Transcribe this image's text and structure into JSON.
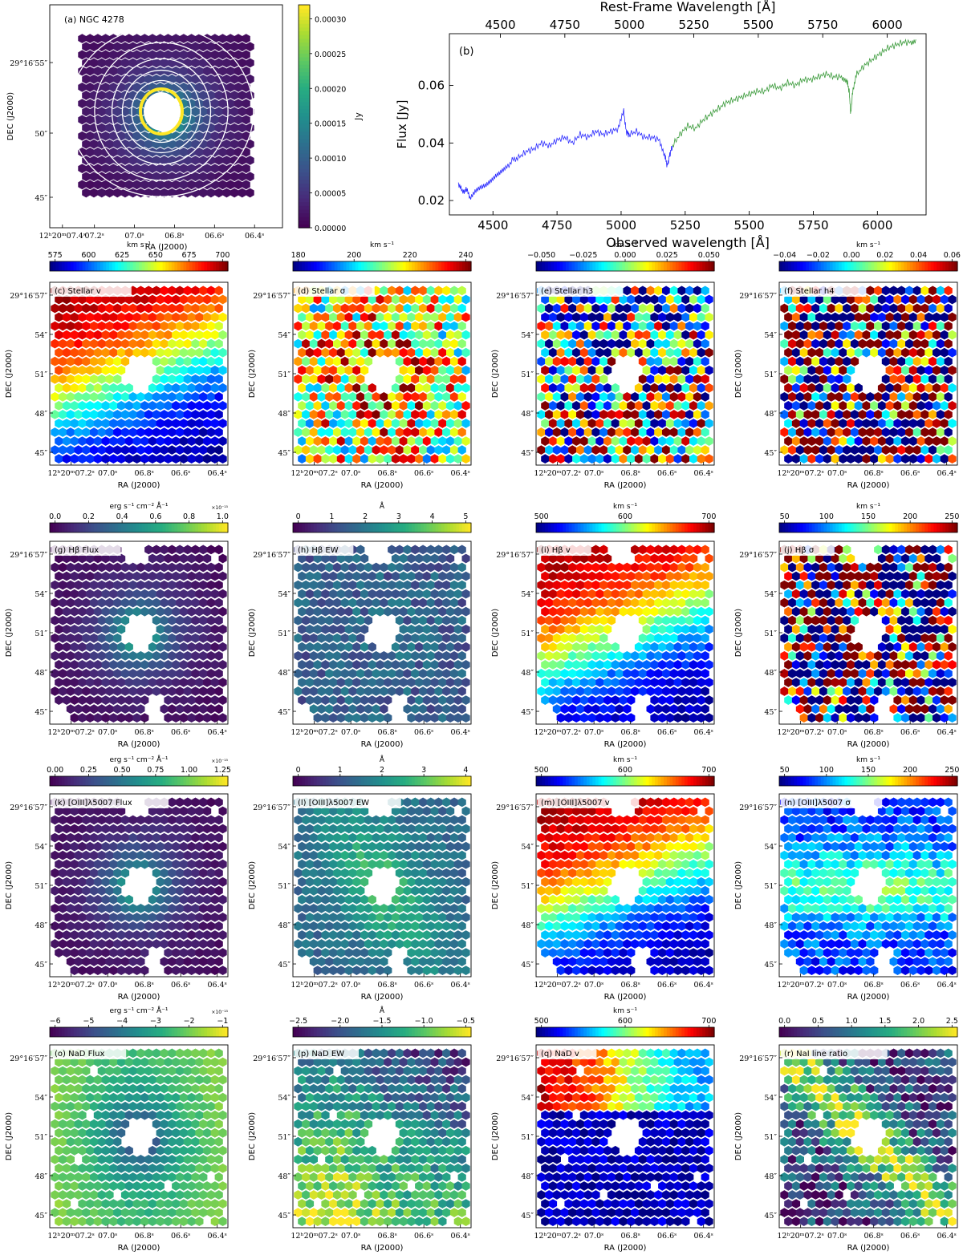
{
  "chart_data": [
    {
      "id": "a",
      "type": "heatmap",
      "title": "(a) NGC 4278",
      "xlabel": "RA (J2000)",
      "ylabel": "DEC (J2000)",
      "x_ticks": [
        "12h20m07.4s",
        "07.2s",
        "07.0s",
        "06.8s",
        "06.6s",
        "06.4s"
      ],
      "y_ticks": [
        "45″",
        "50″",
        "29°16′55″"
      ],
      "colormap": "viridis",
      "colorbar": {
        "label": "Jy",
        "range": [
          0.0,
          0.00032
        ],
        "ticks": [
          "0.00000",
          "0.00005",
          "0.00010",
          "0.00015",
          "0.00020",
          "0.00025",
          "0.00030"
        ]
      },
      "contours": "white",
      "field": "radial"
    },
    {
      "id": "b",
      "type": "line",
      "label": "(b)",
      "xlabel": "Observed wavelength [Å]",
      "x2label": "Rest-Frame Wavelength [Å]",
      "ylabel": "Flux [Jy]",
      "xlim": [
        4330,
        6190
      ],
      "ylim": [
        0.015,
        0.078
      ],
      "x_ticks": [
        "4500",
        "4750",
        "5000",
        "5250",
        "5500",
        "5750",
        "6000"
      ],
      "x2_ticks": [
        "4500",
        "4750",
        "5000",
        "5250",
        "5500",
        "5750",
        "6000"
      ],
      "y_ticks": [
        "0.02",
        "0.04",
        "0.06"
      ],
      "series": [
        {
          "name": "blue segment",
          "color": "#2b2bff",
          "x": [
            4365,
            4380,
            4395,
            4410,
            4430,
            4450,
            4470,
            4490,
            4510,
            4530,
            4550,
            4575,
            4600,
            4630,
            4660,
            4690,
            4720,
            4750,
            4780,
            4810,
            4840,
            4870,
            4900,
            4930,
            4960,
            4990,
            5010,
            5020,
            5030,
            5060,
            5090,
            5120,
            5150,
            5170,
            5180,
            5190,
            5200
          ],
          "y": [
            0.026,
            0.023,
            0.024,
            0.021,
            0.023,
            0.024,
            0.025,
            0.027,
            0.029,
            0.03,
            0.031,
            0.034,
            0.035,
            0.037,
            0.038,
            0.04,
            0.039,
            0.041,
            0.042,
            0.04,
            0.043,
            0.042,
            0.044,
            0.043,
            0.044,
            0.045,
            0.051,
            0.044,
            0.043,
            0.044,
            0.042,
            0.042,
            0.041,
            0.036,
            0.032,
            0.036,
            0.039
          ]
        },
        {
          "name": "green segment",
          "color": "#3a9a3a",
          "x": [
            5200,
            5230,
            5260,
            5290,
            5320,
            5350,
            5380,
            5410,
            5440,
            5470,
            5500,
            5530,
            5560,
            5590,
            5620,
            5650,
            5680,
            5710,
            5740,
            5770,
            5800,
            5830,
            5860,
            5880,
            5890,
            5896,
            5905,
            5920,
            5950,
            5980,
            6010,
            6040,
            6070,
            6100,
            6130,
            6150
          ],
          "y": [
            0.039,
            0.043,
            0.046,
            0.045,
            0.048,
            0.05,
            0.052,
            0.054,
            0.055,
            0.056,
            0.057,
            0.058,
            0.058,
            0.06,
            0.059,
            0.061,
            0.06,
            0.062,
            0.062,
            0.063,
            0.064,
            0.063,
            0.063,
            0.062,
            0.058,
            0.05,
            0.059,
            0.064,
            0.067,
            0.069,
            0.071,
            0.073,
            0.074,
            0.075,
            0.075,
            0.076
          ]
        }
      ]
    },
    {
      "id": "c",
      "type": "heatmap",
      "title": "(c) Stellar v",
      "colormap": "jet",
      "colorbar": {
        "label": "km s⁻¹",
        "ticks": [
          "575",
          "600",
          "625",
          "650",
          "675",
          "700"
        ]
      },
      "field": "velocity",
      "mask": "rect",
      "noise": 0.05
    },
    {
      "id": "d",
      "type": "heatmap",
      "title": "(d) Stellar σ",
      "colormap": "jet",
      "colorbar": {
        "label": "km s⁻¹",
        "ticks": [
          "180",
          "200",
          "220",
          "240"
        ]
      },
      "field": "sigma",
      "mask": "rect",
      "noise": 0.35
    },
    {
      "id": "e",
      "type": "heatmap",
      "title": "(e) Stellar h3",
      "colormap": "jet",
      "colorbar": {
        "label": "km s⁻¹",
        "ticks": [
          "−0.050",
          "−0.025",
          "0.000",
          "0.025",
          "0.050"
        ]
      },
      "field": "h3",
      "mask": "rect",
      "noise": 0.6
    },
    {
      "id": "f",
      "type": "heatmap",
      "title": "(f) Stellar h4",
      "colormap": "jet",
      "colorbar": {
        "label": "km s⁻¹",
        "ticks": [
          "−0.04",
          "−0.02",
          "0.00",
          "0.02",
          "0.04",
          "0.06"
        ]
      },
      "field": "noise",
      "mask": "rect",
      "noise": 1.0
    },
    {
      "id": "g",
      "type": "heatmap",
      "title": "(g) Hβ Flux",
      "colormap": "viridis",
      "colorbar": {
        "label": "erg s⁻¹ cm⁻² Å⁻¹",
        "ticks": [
          "0.0",
          "0.2",
          "0.4",
          "0.6",
          "0.8",
          "1.0"
        ],
        "offset": "×10⁻¹⁵"
      },
      "field": "radial",
      "mask": "notch",
      "noise": 0.03
    },
    {
      "id": "h",
      "type": "heatmap",
      "title": "(h) Hβ EW",
      "colormap": "viridis",
      "colorbar": {
        "label": "Å",
        "ticks": [
          "0",
          "1",
          "2",
          "3",
          "4",
          "5"
        ]
      },
      "field": "flat",
      "mask": "notch",
      "noise": 0.12
    },
    {
      "id": "i",
      "type": "heatmap",
      "title": "(i) Hβ v",
      "colormap": "jet",
      "colorbar": {
        "label": "km s⁻¹",
        "ticks": [
          "500",
          "600",
          "700"
        ]
      },
      "field": "velocity",
      "mask": "notch",
      "noise": 0.05
    },
    {
      "id": "j",
      "type": "heatmap",
      "title": "(j) Hβ σ",
      "colormap": "jet",
      "colorbar": {
        "label": "km s⁻¹",
        "ticks": [
          "50",
          "100",
          "150",
          "200",
          "250"
        ]
      },
      "field": "noise",
      "mask": "notch",
      "noise": 1.0
    },
    {
      "id": "k",
      "type": "heatmap",
      "title": "(k) [OIII]λ5007 Flux",
      "colormap": "viridis",
      "colorbar": {
        "label": "erg s⁻¹ cm⁻² Å⁻¹",
        "ticks": [
          "0.00",
          "0.25",
          "0.50",
          "0.75",
          "1.00",
          "1.25"
        ],
        "offset": "×10⁻¹⁵"
      },
      "field": "radial",
      "mask": "notch",
      "noise": 0.03
    },
    {
      "id": "l",
      "type": "heatmap",
      "title": "(l) [OIII]λ5007 EW",
      "colormap": "viridis",
      "colorbar": {
        "label": "Å",
        "ticks": [
          "0",
          "1",
          "2",
          "3",
          "4"
        ]
      },
      "field": "ew_oiii",
      "mask": "notch",
      "noise": 0.08
    },
    {
      "id": "m",
      "type": "heatmap",
      "title": "(m) [OIII]λ5007 v",
      "colormap": "jet",
      "colorbar": {
        "label": "km s⁻¹",
        "ticks": [
          "500",
          "600",
          "700"
        ]
      },
      "field": "velocity",
      "mask": "notch",
      "noise": 0.05
    },
    {
      "id": "n",
      "type": "heatmap",
      "title": "(n) [OIII]λ5007 σ",
      "colormap": "jet",
      "colorbar": {
        "label": "km s⁻¹",
        "ticks": [
          "50",
          "100",
          "150",
          "200",
          "250"
        ]
      },
      "field": "sigma_oiii",
      "mask": "notch",
      "noise": 0.1
    },
    {
      "id": "o",
      "type": "heatmap",
      "title": "(o) NaD Flux",
      "colormap": "viridis",
      "colorbar": {
        "label": "erg s⁻¹ cm⁻² Å⁻¹",
        "ticks": [
          "−6",
          "−5",
          "−4",
          "−3",
          "−2",
          "−1"
        ],
        "offset": "×10⁻¹⁵"
      },
      "field": "nad_flux",
      "mask": "holes",
      "noise": 0.05
    },
    {
      "id": "p",
      "type": "heatmap",
      "title": "(p) NaD EW",
      "colormap": "viridis",
      "colorbar": {
        "label": "Å",
        "ticks": [
          "−2.5",
          "−2.0",
          "−1.5",
          "−1.0",
          "−0.5"
        ]
      },
      "field": "nad_ew",
      "mask": "holes",
      "noise": 0.18
    },
    {
      "id": "q",
      "type": "heatmap",
      "title": "(q) NaD v",
      "colormap": "jet",
      "colorbar": {
        "label": "km s⁻¹",
        "ticks": [
          "500",
          "600",
          "700"
        ]
      },
      "field": "nad_v",
      "mask": "holes",
      "noise": 0.08
    },
    {
      "id": "r",
      "type": "heatmap",
      "title": "(r) NaI line ratio",
      "colormap": "viridis",
      "colorbar": {
        "label": "",
        "ticks": [
          "0.0",
          "0.5",
          "1.0",
          "1.5",
          "2.0",
          "2.5"
        ]
      },
      "field": "nai_ratio",
      "mask": "holes",
      "noise": 0.3
    }
  ],
  "axes_common": {
    "xlabel": "RA (J2000)",
    "ylabel": "DEC (J2000)",
    "x_ticks": [
      "12h20m07.2s",
      "07.0s",
      "06.8s",
      "06.6s",
      "06.4s"
    ],
    "y_ticks": [
      "45″",
      "48″",
      "51″",
      "54″",
      "29°16′57″"
    ]
  }
}
